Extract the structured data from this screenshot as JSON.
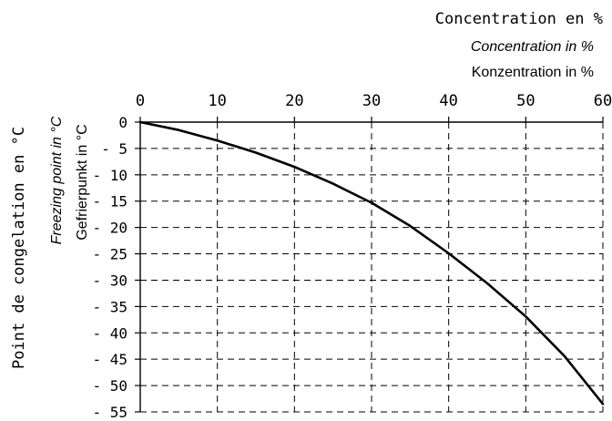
{
  "chart_data": {
    "type": "line",
    "x_titles": [
      "Concentration en %",
      "Concentration in %",
      "Konzentration  in %"
    ],
    "y_titles": [
      "Point de congelation en °C",
      "Freezing point in °C",
      "Gefrierpunkt in °C"
    ],
    "x_ticks": [
      "0",
      "10",
      "20",
      "30",
      "40",
      "50",
      "60"
    ],
    "y_ticks": [
      "0",
      "- 5",
      "- 10",
      "- 15",
      "- 20",
      "- 25",
      "- 30",
      "- 35",
      "- 40",
      "- 45",
      "- 50",
      "- 55"
    ],
    "xlim": [
      0,
      60
    ],
    "ylim": [
      -55,
      0
    ],
    "grid": true,
    "x_axis_position": "top",
    "series": [
      {
        "x": [
          0,
          5,
          10,
          15,
          20,
          25,
          30,
          35,
          40,
          45,
          50,
          55,
          60
        ],
        "y": [
          0,
          -1.5,
          -3.5,
          -5.8,
          -8.5,
          -11.7,
          -15.3,
          -19.7,
          -24.9,
          -30.6,
          -36.9,
          -44.4,
          -53.5
        ]
      }
    ]
  }
}
